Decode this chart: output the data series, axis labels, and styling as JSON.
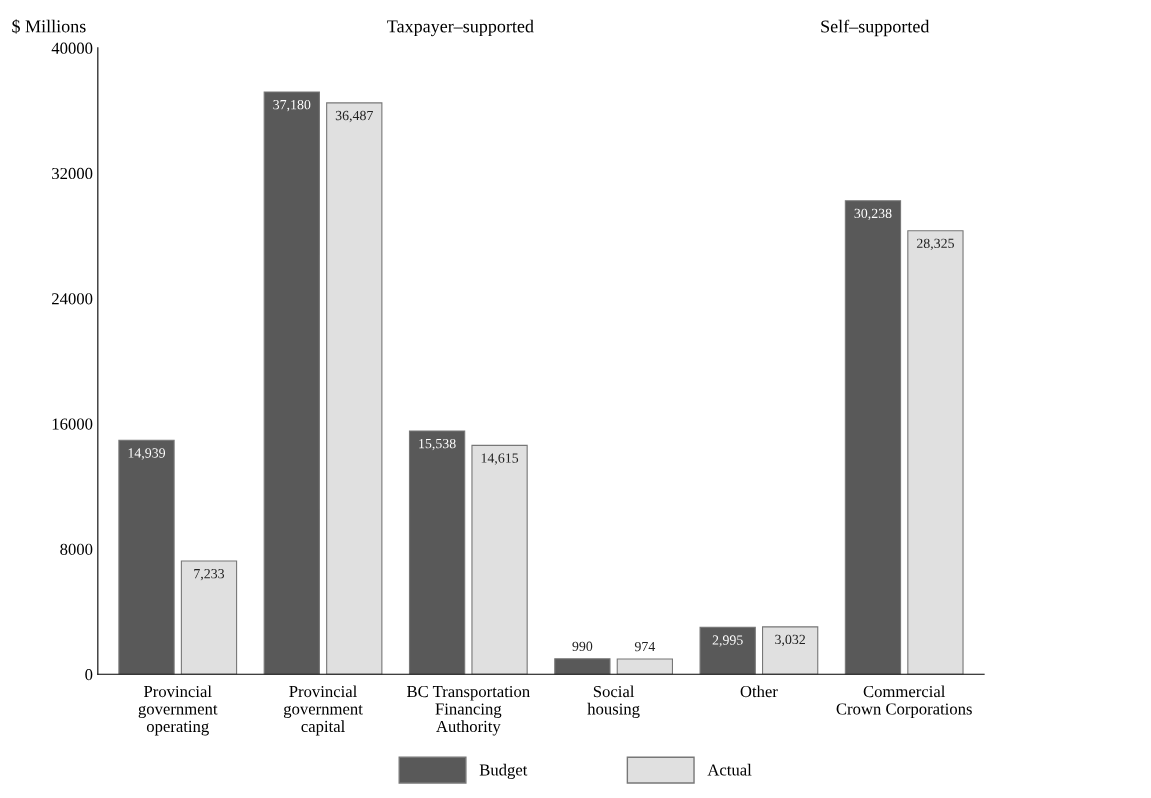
{
  "chart_data": {
    "type": "bar",
    "ylabel": "$ Millions",
    "annotations": [
      "Taxpayer–supported",
      "Self–supported"
    ],
    "categories": [
      "Provincial\ngovernment\noperating",
      "Provincial\ngovernment\ncapital",
      "BC Transportation\nFinancing\nAuthority",
      "Social\nhousing",
      "Other",
      "Commercial\nCrown Corporations"
    ],
    "series": [
      {
        "name": "Budget",
        "color": "#595959",
        "values": [
          14939,
          37180,
          15538,
          990,
          2995,
          30238
        ],
        "value_labels": [
          "14,939",
          "37,180",
          "15,538",
          "990",
          "2,995",
          "30,238"
        ]
      },
      {
        "name": "Actual",
        "color": "#e0e0e0",
        "values": [
          7233,
          36487,
          14615,
          974,
          3032,
          28325
        ],
        "value_labels": [
          "7,233",
          "36,487",
          "14,615",
          "974",
          "3,032",
          "28,325"
        ]
      }
    ],
    "ylim": [
      0,
      40000
    ],
    "yticks": [
      0,
      8000,
      16000,
      24000,
      32000,
      40000
    ],
    "grid": false,
    "legend": "bottom"
  }
}
